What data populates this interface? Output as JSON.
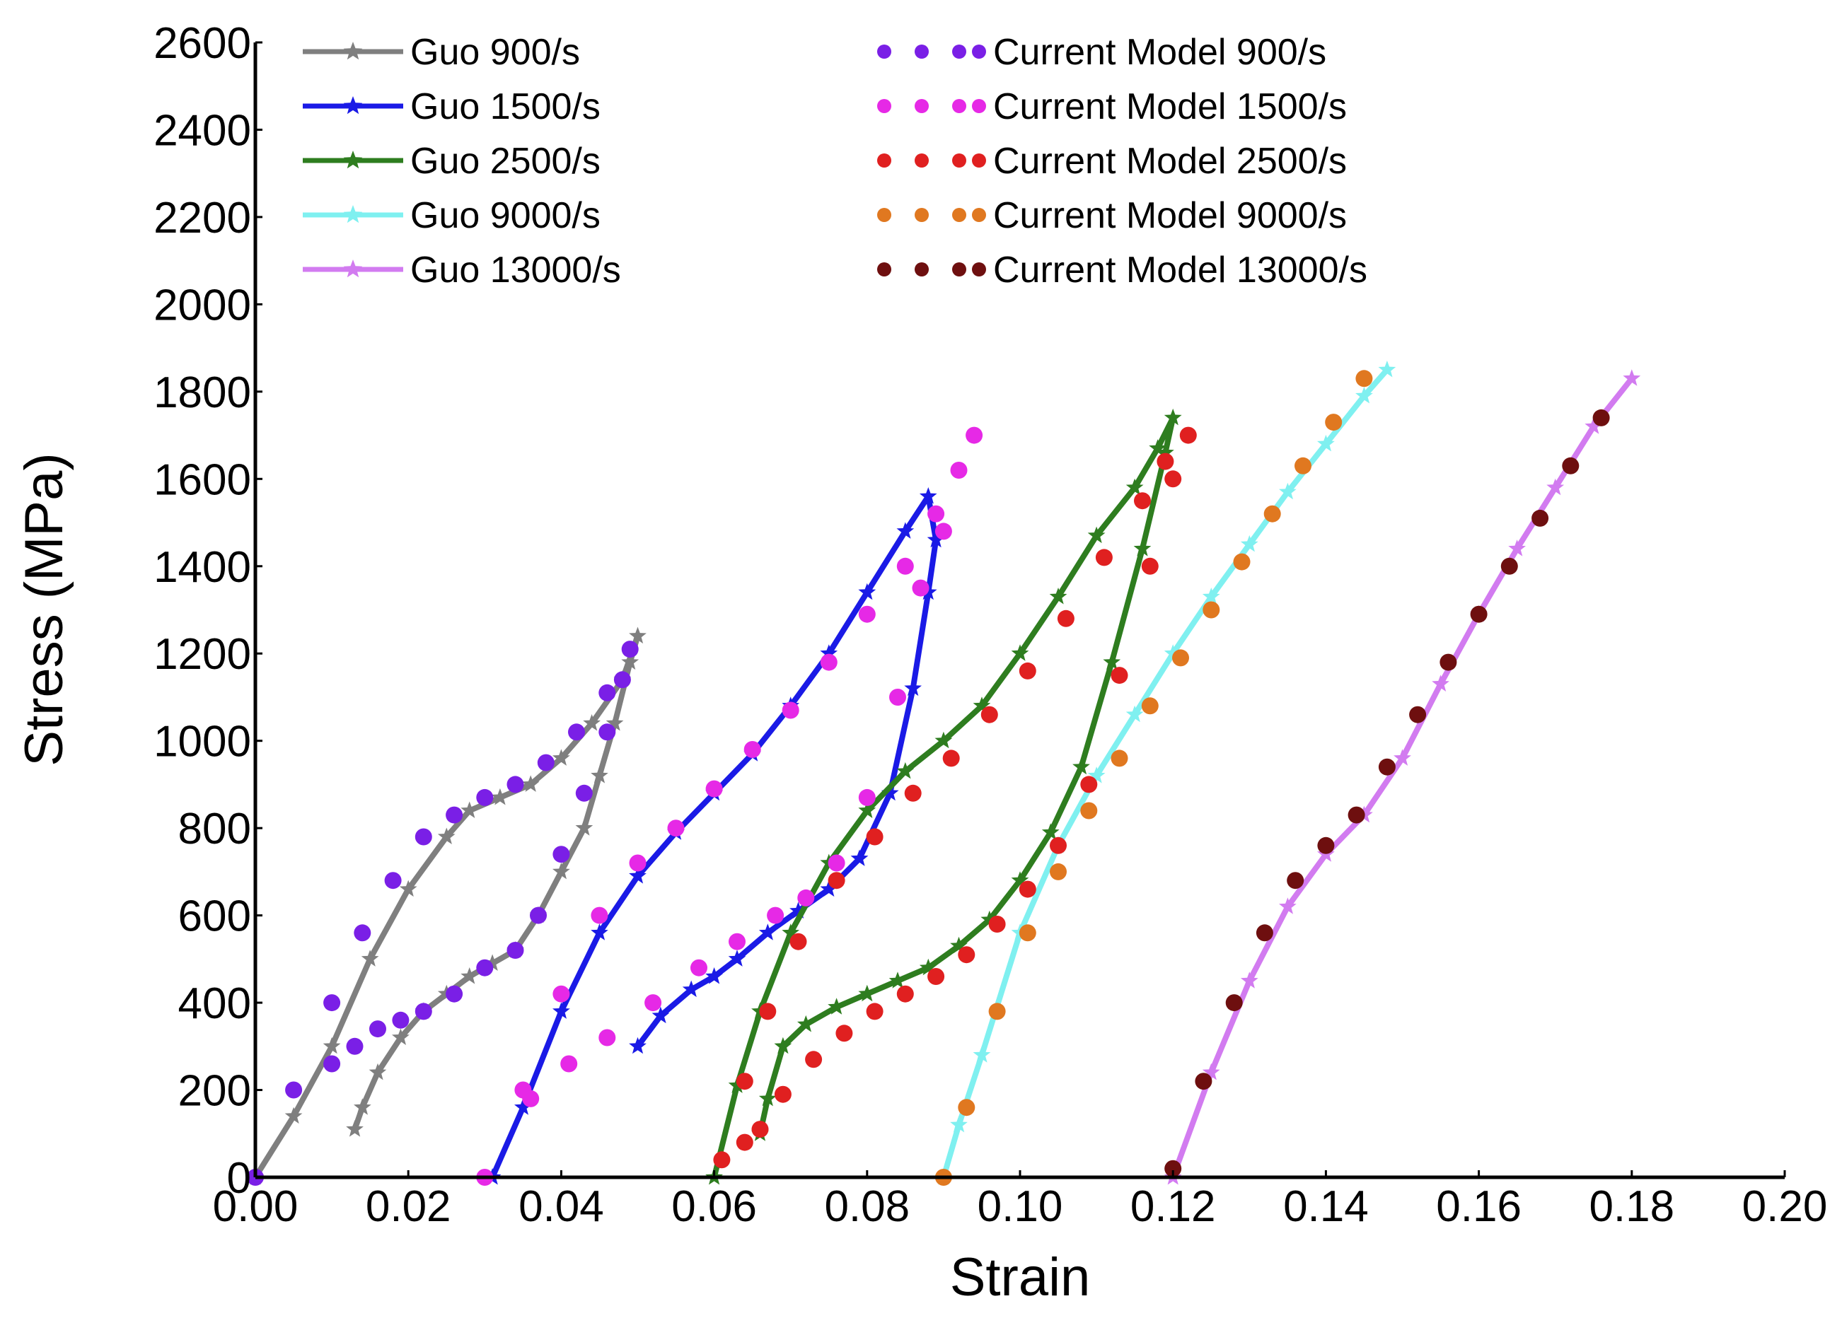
{
  "chart_data": {
    "type": "line",
    "xlabel": "Strain",
    "ylabel": "Stress (MPa)",
    "xlim": [
      0,
      0.2
    ],
    "ylim": [
      0,
      2600
    ],
    "x_ticks": [
      0.0,
      0.02,
      0.04,
      0.06,
      0.08,
      0.1,
      0.12,
      0.14,
      0.16,
      0.18,
      0.2
    ],
    "x_tick_labels": [
      "0.00",
      "0.02",
      "0.04",
      "0.06",
      "0.08",
      "0.10",
      "0.12",
      "0.14",
      "0.16",
      "0.18",
      "0.20"
    ],
    "y_ticks": [
      0,
      200,
      400,
      600,
      800,
      1000,
      1200,
      1400,
      1600,
      1800,
      2000,
      2200,
      2400,
      2600
    ],
    "y_tick_labels": [
      "0",
      "200",
      "400",
      "600",
      "800",
      "1000",
      "1200",
      "1400",
      "1600",
      "1800",
      "2000",
      "2200",
      "2400",
      "2600"
    ],
    "grid": false,
    "legend_placement": "top, two columns",
    "series": [
      {
        "name": "Guo 900/s",
        "style": "line-star",
        "color": "#7f7f7f",
        "x": [
          0.0,
          0.005,
          0.01,
          0.015,
          0.02,
          0.025,
          0.028,
          0.032,
          0.036,
          0.04,
          0.044,
          0.048,
          0.05,
          0.049,
          0.047,
          0.045,
          0.043,
          0.04,
          0.037,
          0.034,
          0.031,
          0.028,
          0.025,
          0.022,
          0.019,
          0.016,
          0.014,
          0.013
        ],
        "y": [
          0,
          140,
          300,
          500,
          660,
          780,
          840,
          870,
          900,
          960,
          1040,
          1140,
          1240,
          1180,
          1040,
          920,
          800,
          700,
          600,
          520,
          490,
          460,
          420,
          380,
          320,
          240,
          160,
          110
        ]
      },
      {
        "name": "Guo 1500/s",
        "style": "line-star",
        "color": "#1a1ae6",
        "x": [
          0.031,
          0.035,
          0.04,
          0.045,
          0.05,
          0.055,
          0.06,
          0.065,
          0.07,
          0.075,
          0.08,
          0.085,
          0.088,
          0.089,
          0.088,
          0.086,
          0.083,
          0.079,
          0.075,
          0.071,
          0.067,
          0.063,
          0.06,
          0.057,
          0.053,
          0.05
        ],
        "y": [
          0,
          160,
          380,
          560,
          690,
          790,
          880,
          970,
          1080,
          1200,
          1340,
          1480,
          1560,
          1460,
          1340,
          1120,
          880,
          730,
          660,
          610,
          560,
          500,
          460,
          430,
          370,
          300
        ]
      },
      {
        "name": "Guo 2500/s",
        "style": "line-star",
        "color": "#2e7d1f",
        "x": [
          0.06,
          0.063,
          0.066,
          0.07,
          0.075,
          0.08,
          0.085,
          0.09,
          0.095,
          0.1,
          0.105,
          0.11,
          0.115,
          0.118,
          0.12,
          0.119,
          0.116,
          0.112,
          0.108,
          0.104,
          0.1,
          0.096,
          0.092,
          0.088,
          0.084,
          0.08,
          0.076,
          0.072,
          0.069,
          0.067,
          0.066
        ],
        "y": [
          0,
          210,
          380,
          560,
          720,
          840,
          930,
          1000,
          1080,
          1200,
          1330,
          1470,
          1580,
          1670,
          1740,
          1660,
          1440,
          1180,
          940,
          790,
          680,
          590,
          530,
          480,
          450,
          420,
          390,
          350,
          300,
          180,
          100
        ]
      },
      {
        "name": "Guo 9000/s",
        "style": "line-star",
        "color": "#7ff0f0",
        "x": [
          0.09,
          0.092,
          0.095,
          0.1,
          0.105,
          0.11,
          0.115,
          0.12,
          0.125,
          0.13,
          0.135,
          0.14,
          0.145,
          0.148
        ],
        "y": [
          0,
          120,
          280,
          560,
          760,
          920,
          1060,
          1200,
          1330,
          1450,
          1570,
          1680,
          1790,
          1850
        ]
      },
      {
        "name": "Guo 13000/s",
        "style": "line-star",
        "color": "#d27bf0",
        "x": [
          0.12,
          0.125,
          0.13,
          0.135,
          0.14,
          0.145,
          0.15,
          0.155,
          0.16,
          0.165,
          0.17,
          0.175,
          0.18
        ],
        "y": [
          0,
          240,
          450,
          620,
          740,
          830,
          960,
          1130,
          1290,
          1440,
          1580,
          1720,
          1830
        ]
      },
      {
        "name": "Current Model 900/s",
        "style": "dots",
        "color": "#7a1fe6",
        "x": [
          0.0,
          0.005,
          0.01,
          0.014,
          0.018,
          0.022,
          0.026,
          0.03,
          0.034,
          0.038,
          0.042,
          0.046,
          0.049,
          0.048,
          0.046,
          0.043,
          0.04,
          0.037,
          0.034,
          0.03,
          0.026,
          0.022,
          0.019,
          0.016,
          0.013,
          0.01
        ],
        "y": [
          0,
          200,
          400,
          560,
          680,
          780,
          830,
          870,
          900,
          950,
          1020,
          1110,
          1210,
          1140,
          1020,
          880,
          740,
          600,
          520,
          480,
          420,
          380,
          360,
          340,
          300,
          260
        ]
      },
      {
        "name": "Current Model 1500/s",
        "style": "dots",
        "color": "#e629e6",
        "x": [
          0.03,
          0.035,
          0.04,
          0.045,
          0.05,
          0.055,
          0.06,
          0.065,
          0.07,
          0.075,
          0.08,
          0.085,
          0.089,
          0.092,
          0.094,
          0.09,
          0.087,
          0.084,
          0.08,
          0.076,
          0.072,
          0.068,
          0.063,
          0.058,
          0.052,
          0.046,
          0.041,
          0.036
        ],
        "y": [
          0,
          200,
          420,
          600,
          720,
          800,
          890,
          980,
          1070,
          1180,
          1290,
          1400,
          1520,
          1620,
          1700,
          1480,
          1350,
          1100,
          870,
          720,
          640,
          600,
          540,
          480,
          400,
          320,
          260,
          180
        ]
      },
      {
        "name": "Current Model 2500/s",
        "style": "dots",
        "color": "#e02020",
        "x": [
          0.061,
          0.064,
          0.067,
          0.071,
          0.076,
          0.081,
          0.086,
          0.091,
          0.096,
          0.101,
          0.106,
          0.111,
          0.116,
          0.119,
          0.122,
          0.12,
          0.117,
          0.113,
          0.109,
          0.105,
          0.101,
          0.097,
          0.093,
          0.089,
          0.085,
          0.081,
          0.077,
          0.073,
          0.069,
          0.066,
          0.064
        ],
        "y": [
          40,
          220,
          380,
          540,
          680,
          780,
          880,
          960,
          1060,
          1160,
          1280,
          1420,
          1550,
          1640,
          1700,
          1600,
          1400,
          1150,
          900,
          760,
          660,
          580,
          510,
          460,
          420,
          380,
          330,
          270,
          190,
          110,
          80
        ]
      },
      {
        "name": "Current Model 9000/s",
        "style": "dots",
        "color": "#e07820",
        "x": [
          0.09,
          0.093,
          0.097,
          0.101,
          0.105,
          0.109,
          0.113,
          0.117,
          0.121,
          0.125,
          0.129,
          0.133,
          0.137,
          0.141,
          0.145
        ],
        "y": [
          0,
          160,
          380,
          560,
          700,
          840,
          960,
          1080,
          1190,
          1300,
          1410,
          1520,
          1630,
          1730,
          1830
        ]
      },
      {
        "name": "Current Model 13000/s",
        "style": "dots",
        "color": "#6e0f0f",
        "x": [
          0.12,
          0.124,
          0.128,
          0.132,
          0.136,
          0.14,
          0.144,
          0.148,
          0.152,
          0.156,
          0.16,
          0.164,
          0.168,
          0.172,
          0.176
        ],
        "y": [
          20,
          220,
          400,
          560,
          680,
          760,
          830,
          940,
          1060,
          1180,
          1290,
          1400,
          1510,
          1630,
          1740
        ]
      }
    ]
  }
}
